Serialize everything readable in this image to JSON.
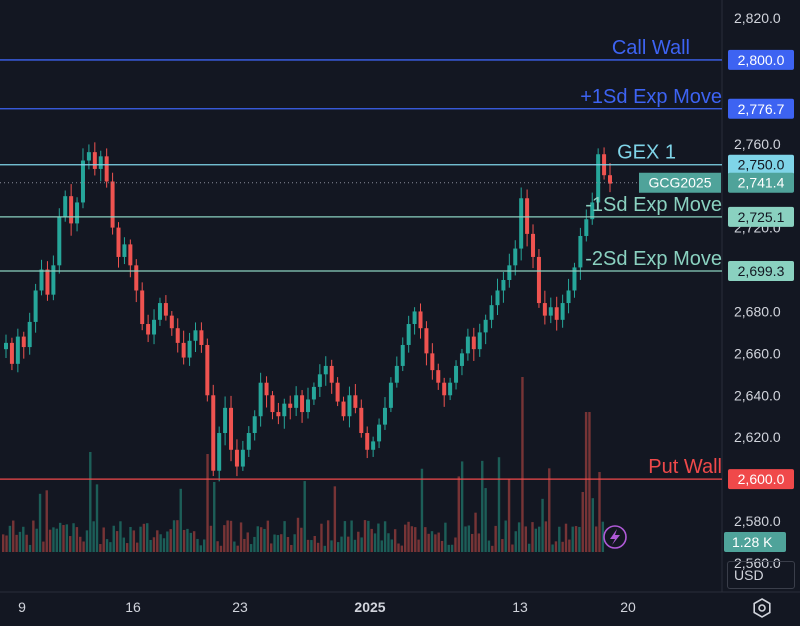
{
  "chart_data": {
    "type": "candlestick",
    "symbol": "GCG2025",
    "price_axis": {
      "ticks": [
        "2,820.0",
        "2,760.0",
        "2,740.0",
        "2,720.0",
        "2,700.0",
        "2,680.0",
        "2,660.0",
        "2,640.0",
        "2,620.0",
        "2,600.0",
        "2,580.0",
        "2,560.0"
      ],
      "ylim": [
        2546,
        2830
      ]
    },
    "date_axis": {
      "ticks": [
        {
          "label": "9",
          "bold": false
        },
        {
          "label": "16",
          "bold": false
        },
        {
          "label": "23",
          "bold": false
        },
        {
          "label": "2025",
          "bold": true
        },
        {
          "label": "13",
          "bold": false
        },
        {
          "label": "20",
          "bold": false
        }
      ]
    },
    "levels": [
      {
        "name": "Call Wall",
        "price": 2800.0,
        "badge": "2,800.0",
        "color": "#3d63f2"
      },
      {
        "name": "+1Sd Exp Move",
        "price": 2776.7,
        "badge": "2,776.7",
        "color": "#3d63f2"
      },
      {
        "name": "GEX 1",
        "price": 2750.0,
        "badge": "2,750.0",
        "color": "#7fd4e8"
      },
      {
        "name": "-1Sd Exp Move",
        "price": 2725.1,
        "badge": "2,725.1",
        "color": "#8ad1c0"
      },
      {
        "name": "-2Sd Exp Move",
        "price": 2699.3,
        "badge": "2,699.3",
        "color": "#8ad1c0"
      },
      {
        "name": "Put Wall",
        "price": 2600.0,
        "badge": "2,600.0",
        "color": "#f0494a"
      }
    ],
    "last_price": {
      "value": 2741.4,
      "badge": "2,741.4",
      "symbol_label": "GCG2025"
    },
    "volume_badge": "1.28 K",
    "series": [
      {
        "x": 0,
        "y": 2665
      },
      {
        "x": 1,
        "y": 2655
      },
      {
        "x": 2,
        "y": 2668
      },
      {
        "x": 3,
        "y": 2663
      },
      {
        "x": 4,
        "y": 2675
      },
      {
        "x": 5,
        "y": 2690
      },
      {
        "x": 6,
        "y": 2700
      },
      {
        "x": 7,
        "y": 2688
      },
      {
        "x": 8,
        "y": 2702
      },
      {
        "x": 9,
        "y": 2725
      },
      {
        "x": 10,
        "y": 2735
      },
      {
        "x": 11,
        "y": 2722
      },
      {
        "x": 12,
        "y": 2732
      },
      {
        "x": 13,
        "y": 2752
      },
      {
        "x": 14,
        "y": 2756
      },
      {
        "x": 15,
        "y": 2748
      },
      {
        "x": 16,
        "y": 2754
      },
      {
        "x": 17,
        "y": 2742
      },
      {
        "x": 18,
        "y": 2720
      },
      {
        "x": 19,
        "y": 2706
      },
      {
        "x": 20,
        "y": 2712
      },
      {
        "x": 21,
        "y": 2702
      },
      {
        "x": 22,
        "y": 2690
      },
      {
        "x": 23,
        "y": 2674
      },
      {
        "x": 24,
        "y": 2669
      },
      {
        "x": 25,
        "y": 2676
      },
      {
        "x": 26,
        "y": 2684
      },
      {
        "x": 27,
        "y": 2678
      },
      {
        "x": 28,
        "y": 2672
      },
      {
        "x": 29,
        "y": 2665
      },
      {
        "x": 30,
        "y": 2658
      },
      {
        "x": 31,
        "y": 2666
      },
      {
        "x": 32,
        "y": 2671
      },
      {
        "x": 33,
        "y": 2664
      },
      {
        "x": 34,
        "y": 2640
      },
      {
        "x": 35,
        "y": 2604
      },
      {
        "x": 36,
        "y": 2622
      },
      {
        "x": 37,
        "y": 2634
      },
      {
        "x": 38,
        "y": 2614
      },
      {
        "x": 39,
        "y": 2606
      },
      {
        "x": 40,
        "y": 2614
      },
      {
        "x": 41,
        "y": 2622
      },
      {
        "x": 42,
        "y": 2630
      },
      {
        "x": 43,
        "y": 2646
      },
      {
        "x": 44,
        "y": 2640
      },
      {
        "x": 45,
        "y": 2632
      },
      {
        "x": 46,
        "y": 2630
      },
      {
        "x": 47,
        "y": 2636
      },
      {
        "x": 48,
        "y": 2634
      },
      {
        "x": 49,
        "y": 2640
      },
      {
        "x": 50,
        "y": 2632
      },
      {
        "x": 51,
        "y": 2638
      },
      {
        "x": 52,
        "y": 2644
      },
      {
        "x": 53,
        "y": 2650
      },
      {
        "x": 54,
        "y": 2654
      },
      {
        "x": 55,
        "y": 2646
      },
      {
        "x": 56,
        "y": 2637
      },
      {
        "x": 57,
        "y": 2630
      },
      {
        "x": 58,
        "y": 2640
      },
      {
        "x": 59,
        "y": 2634
      },
      {
        "x": 60,
        "y": 2622
      },
      {
        "x": 61,
        "y": 2614
      },
      {
        "x": 62,
        "y": 2618
      },
      {
        "x": 63,
        "y": 2626
      },
      {
        "x": 64,
        "y": 2634
      },
      {
        "x": 65,
        "y": 2646
      },
      {
        "x": 66,
        "y": 2654
      },
      {
        "x": 67,
        "y": 2664
      },
      {
        "x": 68,
        "y": 2674
      },
      {
        "x": 69,
        "y": 2680
      },
      {
        "x": 70,
        "y": 2672
      },
      {
        "x": 71,
        "y": 2660
      },
      {
        "x": 72,
        "y": 2652
      },
      {
        "x": 73,
        "y": 2646
      },
      {
        "x": 74,
        "y": 2640
      },
      {
        "x": 75,
        "y": 2646
      },
      {
        "x": 76,
        "y": 2654
      },
      {
        "x": 77,
        "y": 2660
      },
      {
        "x": 78,
        "y": 2668
      },
      {
        "x": 79,
        "y": 2662
      },
      {
        "x": 80,
        "y": 2670
      },
      {
        "x": 81,
        "y": 2676
      },
      {
        "x": 82,
        "y": 2683
      },
      {
        "x": 83,
        "y": 2690
      },
      {
        "x": 84,
        "y": 2695
      },
      {
        "x": 85,
        "y": 2702
      },
      {
        "x": 86,
        "y": 2710
      },
      {
        "x": 87,
        "y": 2734
      },
      {
        "x": 88,
        "y": 2717
      },
      {
        "x": 89,
        "y": 2706
      },
      {
        "x": 90,
        "y": 2684
      },
      {
        "x": 91,
        "y": 2678
      },
      {
        "x": 92,
        "y": 2682
      },
      {
        "x": 93,
        "y": 2676
      },
      {
        "x": 94,
        "y": 2684
      },
      {
        "x": 95,
        "y": 2690
      },
      {
        "x": 96,
        "y": 2701
      },
      {
        "x": 97,
        "y": 2716
      },
      {
        "x": 98,
        "y": 2724
      },
      {
        "x": 99,
        "y": 2732
      },
      {
        "x": 100,
        "y": 2755
      },
      {
        "x": 101,
        "y": 2745
      },
      {
        "x": 102,
        "y": 2741
      }
    ]
  },
  "currency": "USD"
}
